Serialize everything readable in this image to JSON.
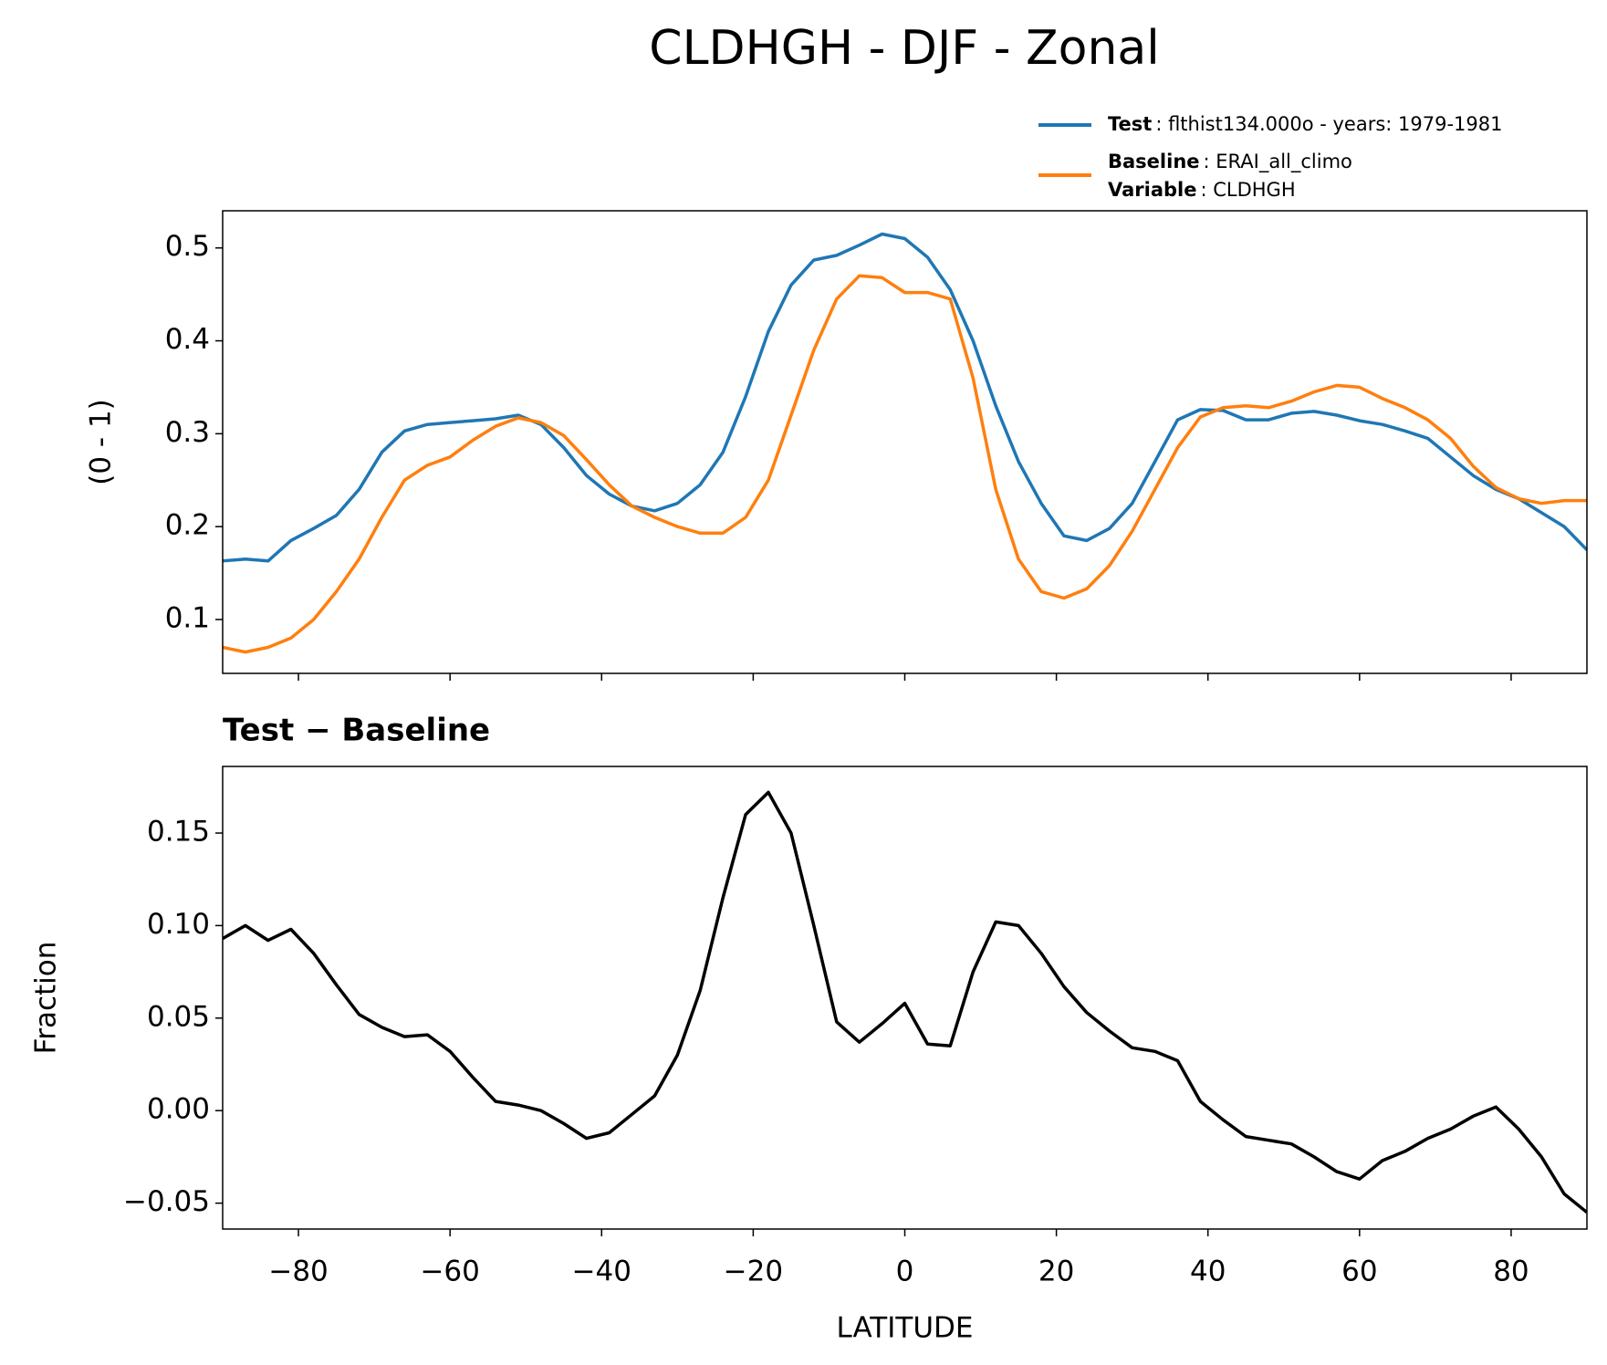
{
  "title": "CLDHGH - DJF - Zonal",
  "chart_data": [
    {
      "type": "line",
      "ylabel": "(0 - 1)",
      "x": [
        -90,
        -87,
        -84,
        -81,
        -78,
        -75,
        -72,
        -69,
        -66,
        -63,
        -60,
        -57,
        -54,
        -51,
        -48,
        -45,
        -42,
        -39,
        -36,
        -33,
        -30,
        -27,
        -24,
        -21,
        -18,
        -15,
        -12,
        -9,
        -6,
        -3,
        0,
        3,
        6,
        9,
        12,
        15,
        18,
        21,
        24,
        27,
        30,
        33,
        36,
        39,
        42,
        45,
        48,
        51,
        54,
        57,
        60,
        63,
        66,
        69,
        72,
        75,
        78,
        81,
        84,
        87,
        90
      ],
      "series": [
        {
          "name": "Test",
          "description": ": flthist134.000o - years: 1979-1981",
          "color": "#1f77b4",
          "values": [
            0.163,
            0.165,
            0.163,
            0.185,
            0.198,
            0.212,
            0.24,
            0.28,
            0.303,
            0.31,
            0.312,
            0.314,
            0.316,
            0.32,
            0.31,
            0.285,
            0.255,
            0.235,
            0.222,
            0.217,
            0.225,
            0.245,
            0.28,
            0.34,
            0.41,
            0.46,
            0.487,
            0.492,
            0.503,
            0.515,
            0.51,
            0.49,
            0.455,
            0.4,
            0.33,
            0.27,
            0.225,
            0.19,
            0.185,
            0.198,
            0.225,
            0.27,
            0.315,
            0.326,
            0.325,
            0.315,
            0.315,
            0.322,
            0.324,
            0.32,
            0.314,
            0.31,
            0.303,
            0.295,
            0.275,
            0.255,
            0.24,
            0.23,
            0.215,
            0.2,
            0.175
          ]
        },
        {
          "name": "Baseline",
          "description": ": ERAI_all_climo",
          "color": "#ff7f0e",
          "values": [
            0.07,
            0.065,
            0.07,
            0.08,
            0.1,
            0.13,
            0.165,
            0.21,
            0.25,
            0.266,
            0.275,
            0.293,
            0.308,
            0.317,
            0.312,
            0.298,
            0.272,
            0.245,
            0.222,
            0.21,
            0.2,
            0.193,
            0.193,
            0.21,
            0.25,
            0.32,
            0.39,
            0.445,
            0.47,
            0.468,
            0.452,
            0.452,
            0.445,
            0.36,
            0.24,
            0.165,
            0.13,
            0.123,
            0.133,
            0.158,
            0.195,
            0.24,
            0.285,
            0.318,
            0.328,
            0.33,
            0.328,
            0.335,
            0.345,
            0.352,
            0.35,
            0.338,
            0.328,
            0.315,
            0.295,
            0.265,
            0.242,
            0.23,
            0.225,
            0.228,
            0.228
          ]
        }
      ],
      "legend_extra": {
        "name": "Variable",
        "description": ": CLDHGH"
      },
      "legend": "upper right",
      "xlim": [
        -90,
        90
      ],
      "xticks": [
        -80,
        -60,
        -40,
        -20,
        0,
        20,
        40,
        60,
        80
      ],
      "ylim": [
        0.042,
        0.54
      ],
      "yticks": [
        0.1,
        0.2,
        0.3,
        0.4,
        0.5
      ]
    },
    {
      "type": "line",
      "title": "Test − Baseline",
      "xlabel": "LATITUDE",
      "ylabel": "Fraction",
      "x": [
        -90,
        -87,
        -84,
        -81,
        -78,
        -75,
        -72,
        -69,
        -66,
        -63,
        -60,
        -57,
        -54,
        -51,
        -48,
        -45,
        -42,
        -39,
        -36,
        -33,
        -30,
        -27,
        -24,
        -21,
        -18,
        -15,
        -12,
        -9,
        -6,
        -3,
        0,
        3,
        6,
        9,
        12,
        15,
        18,
        21,
        24,
        27,
        30,
        33,
        36,
        39,
        42,
        45,
        48,
        51,
        54,
        57,
        60,
        63,
        66,
        69,
        72,
        75,
        78,
        81,
        84,
        87,
        90
      ],
      "color": "#000000",
      "values": [
        0.093,
        0.1,
        0.092,
        0.098,
        0.085,
        0.068,
        0.052,
        0.045,
        0.04,
        0.041,
        0.032,
        0.018,
        0.005,
        0.003,
        0.0,
        -0.007,
        -0.015,
        -0.012,
        -0.002,
        0.008,
        0.03,
        0.065,
        0.115,
        0.16,
        0.172,
        0.15,
        0.1,
        0.048,
        0.037,
        0.047,
        0.058,
        0.036,
        0.035,
        0.075,
        0.102,
        0.1,
        0.085,
        0.067,
        0.053,
        0.043,
        0.034,
        0.032,
        0.027,
        0.005,
        -0.005,
        -0.014,
        -0.016,
        -0.018,
        -0.025,
        -0.033,
        -0.037,
        -0.027,
        -0.022,
        -0.015,
        -0.01,
        -0.003,
        0.002,
        -0.01,
        -0.025,
        -0.045,
        -0.055
      ],
      "xlim": [
        -90,
        90
      ],
      "xticks": [
        {
          "value": -80,
          "label": "−80"
        },
        {
          "value": -60,
          "label": "−60"
        },
        {
          "value": -40,
          "label": "−40"
        },
        {
          "value": -20,
          "label": "−20"
        },
        0,
        20,
        40,
        60,
        80
      ],
      "ylim": [
        -0.064,
        0.186
      ],
      "yticks": [
        {
          "value": -0.05,
          "label": "−0.05"
        },
        {
          "value": 0,
          "label": "0.00"
        },
        {
          "value": 0.05,
          "label": "0.05"
        },
        {
          "value": 0.1,
          "label": "0.10"
        },
        0.15
      ]
    }
  ]
}
